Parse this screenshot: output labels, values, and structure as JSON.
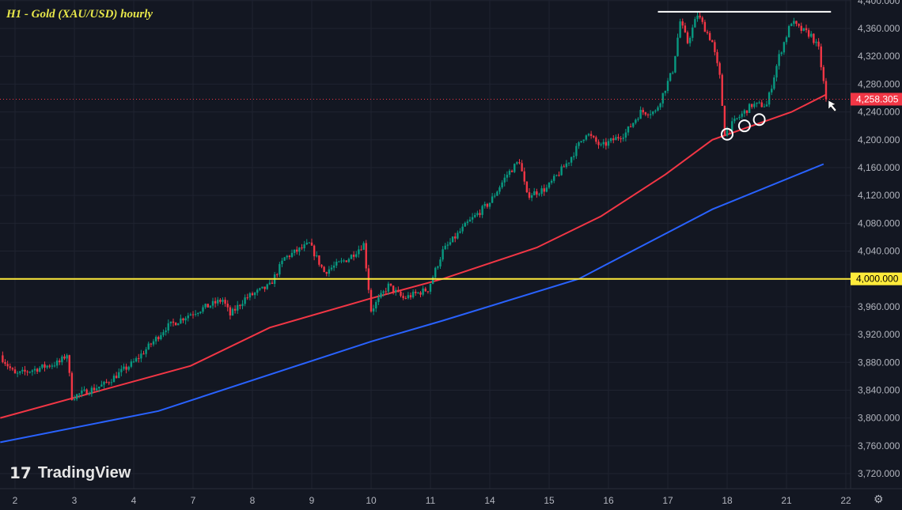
{
  "chart_data": {
    "type": "candlestick",
    "title": "H1 - Gold (XAU/USD) hourly",
    "x_tick_labels": [
      "2",
      "3",
      "4",
      "7",
      "8",
      "9",
      "10",
      "11",
      "14",
      "15",
      "16",
      "17",
      "18",
      "21",
      "22"
    ],
    "y_tick_labels": [
      "4,400.000",
      "4,360.000",
      "4,320.000",
      "4,280.000",
      "4,240.000",
      "4,200.000",
      "4,160.000",
      "4,120.000",
      "4,080.000",
      "4,040.000",
      "4,000.000",
      "3,960.000",
      "3,920.000",
      "3,880.000",
      "3,840.000",
      "3,800.000",
      "3,760.000",
      "3,720.000"
    ],
    "ylim": [
      3700,
      4400
    ],
    "grid": true,
    "price_path": [
      [
        "1",
        18,
        3890
      ],
      [
        "2",
        0,
        3862
      ],
      [
        "2",
        18,
        3880
      ],
      [
        "2",
        21,
        3892
      ],
      [
        "2",
        23,
        3830
      ],
      [
        "3",
        12,
        3848
      ],
      [
        "4",
        0,
        3880
      ],
      [
        "4",
        8,
        3910
      ],
      [
        "4",
        13,
        3930
      ],
      [
        "4",
        23,
        3950
      ],
      [
        "7",
        12,
        3970
      ],
      [
        "7",
        15,
        3948
      ],
      [
        "7",
        21,
        3972
      ],
      [
        "8",
        7,
        3990
      ],
      [
        "8",
        13,
        4030
      ],
      [
        "8",
        23,
        4050
      ],
      [
        "9",
        5,
        4010
      ],
      [
        "9",
        15,
        4030
      ],
      [
        "9",
        21,
        4050
      ],
      [
        "10",
        0,
        3955
      ],
      [
        "10",
        7,
        3990
      ],
      [
        "10",
        13,
        3972
      ],
      [
        "10",
        23,
        3985
      ],
      [
        "11",
        5,
        4040
      ],
      [
        "11",
        15,
        4080
      ],
      [
        "14",
        0,
        4110
      ],
      [
        "14",
        7,
        4150
      ],
      [
        "14",
        12,
        4170
      ],
      [
        "14",
        15,
        4120
      ],
      [
        "14",
        23,
        4130
      ],
      [
        "15",
        8,
        4170
      ],
      [
        "15",
        15,
        4210
      ],
      [
        "15",
        21,
        4190
      ],
      [
        "16",
        7,
        4210
      ],
      [
        "16",
        13,
        4240
      ],
      [
        "16",
        19,
        4240
      ],
      [
        "17",
        2,
        4300
      ],
      [
        "17",
        5,
        4370
      ],
      [
        "17",
        8,
        4340
      ],
      [
        "17",
        12,
        4380
      ],
      [
        "17",
        18,
        4340
      ],
      [
        "17",
        21,
        4290
      ],
      [
        "17",
        23,
        4210
      ],
      [
        "18",
        4,
        4230
      ],
      [
        "18",
        10,
        4250
      ],
      [
        "18",
        16,
        4250
      ],
      [
        "18",
        21,
        4320
      ],
      [
        "21",
        2,
        4370
      ],
      [
        "21",
        5,
        4360
      ],
      [
        "21",
        10,
        4350
      ],
      [
        "21",
        13,
        4330
      ],
      [
        "21",
        16,
        4258.305
      ]
    ],
    "series": [
      {
        "color": "#f23645",
        "values": [
          [
            "1",
            18,
            3800
          ],
          [
            "4",
            23,
            3875
          ],
          [
            "8",
            7,
            3930
          ],
          [
            "10",
            0,
            3972
          ],
          [
            "11",
            5,
            4000
          ],
          [
            "14",
            19,
            4045
          ],
          [
            "15",
            21,
            4090
          ],
          [
            "16",
            23,
            4150
          ],
          [
            "17",
            18,
            4200
          ],
          [
            "21",
            2,
            4240
          ],
          [
            "21",
            16,
            4265
          ]
        ]
      },
      {
        "color": "#2962ff",
        "values": [
          [
            "1",
            18,
            3765
          ],
          [
            "4",
            10,
            3810
          ],
          [
            "10",
            0,
            3910
          ],
          [
            "11",
            5,
            3940
          ],
          [
            "15",
            12,
            4000
          ],
          [
            "17",
            18,
            4100
          ],
          [
            "21",
            15,
            4165
          ]
        ]
      }
    ],
    "horizontal_levels": [
      {
        "price": 4000,
        "label": "4,000.000",
        "color": "#ffeb3b"
      },
      {
        "price": 4384,
        "from": [
          "16",
          20
        ],
        "to": [
          "21",
          18
        ],
        "color": "#ffffff"
      }
    ],
    "last_price": {
      "label": "4,258.305",
      "value": 4258.305,
      "color": "#f23645"
    },
    "circle_markers": [
      [
        "18",
        0,
        4208
      ],
      [
        "18",
        7,
        4220
      ],
      [
        "18",
        13,
        4229
      ]
    ],
    "colors": {
      "up": "#089981",
      "down": "#f23645",
      "background": "#131722"
    }
  },
  "branding": {
    "logo_text": "TradingView",
    "logo_mark": "TV"
  },
  "icons": {
    "settings": "gear-icon",
    "cursor": "arrow-cursor-icon"
  }
}
